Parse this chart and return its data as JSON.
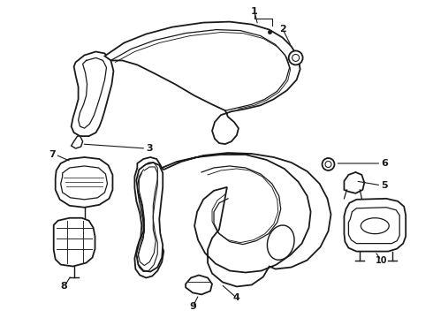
{
  "background_color": "#ffffff",
  "line_color": "#1a1a1a",
  "line_width": 1.3,
  "figsize": [
    4.9,
    3.6
  ],
  "dpi": 100
}
